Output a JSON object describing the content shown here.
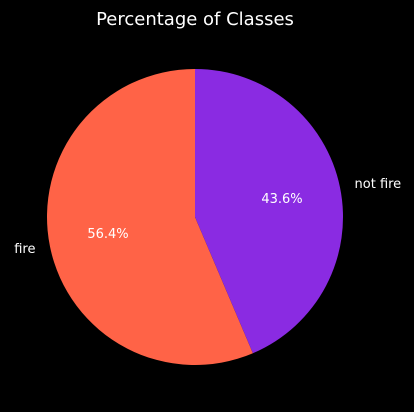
{
  "chart_data": {
    "type": "pie",
    "title": "Percentage of Classes",
    "categories": [
      "fire",
      "not fire"
    ],
    "values": [
      56.4,
      43.6
    ],
    "percent_labels": [
      "56.4%",
      "43.6%"
    ],
    "colors": [
      "#ff6347",
      "#8a2be2"
    ],
    "start_angle_deg": 90,
    "direction": "counterclockwise",
    "legend": "none",
    "background": "#000000"
  }
}
